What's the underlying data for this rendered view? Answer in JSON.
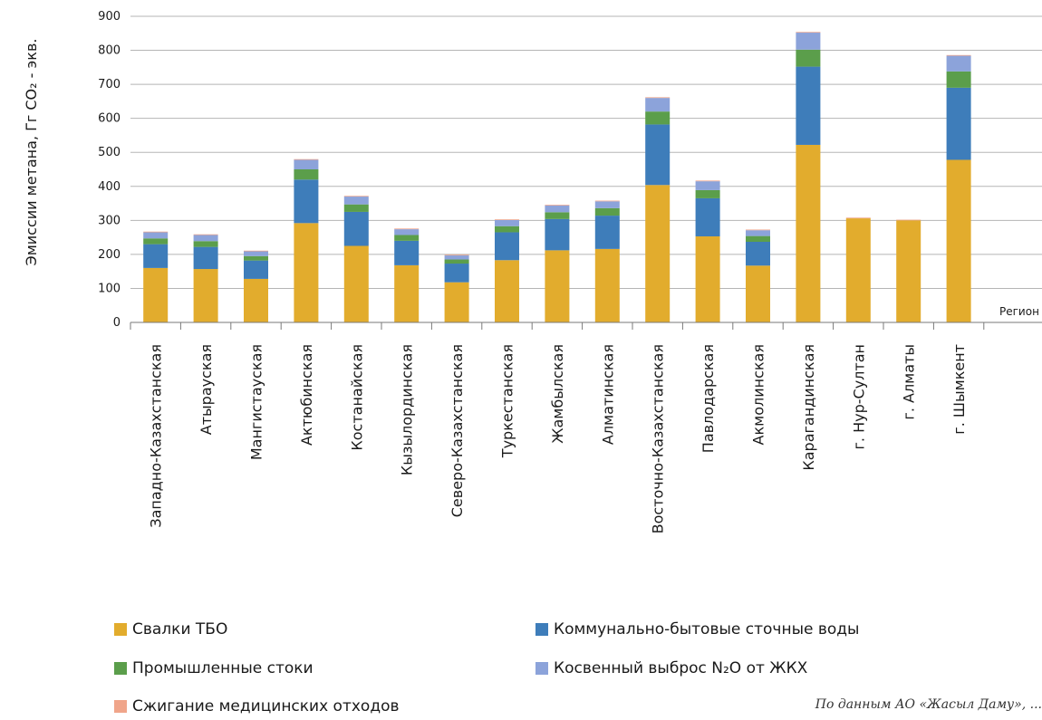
{
  "chart_data": {
    "type": "bar",
    "stacked": true,
    "ylabel": "Эмиссии метана, Гг CO₂ - экв.",
    "xlabel": "Регион",
    "ylim": [
      0,
      900
    ],
    "yticks": [
      0,
      100,
      200,
      300,
      400,
      500,
      600,
      700,
      800,
      900
    ],
    "grid": true,
    "legend_position": "bottom",
    "categories": [
      "Западно-Казахстанская",
      "Атырауская",
      "Мангистауская",
      "Актюбинская",
      "Костанайская",
      "Кызылординская",
      "Северо-Казахстанская",
      "Туркестанская",
      "Жамбылская",
      "Алматинская",
      "Восточно-Казахстанская",
      "Павлодарская",
      "Акмолинская",
      "Карагандинская",
      "г. Нур-Султан",
      "г. Алматы",
      "г. Шымкент"
    ],
    "series": [
      {
        "name": "Свалки ТБО",
        "color": "#E2AC2D",
        "values": [
          160,
          157,
          128,
          292,
          225,
          168,
          118,
          183,
          212,
          216,
          404,
          253,
          167,
          522,
          306,
          300,
          478
        ]
      },
      {
        "name": "Коммунально-бытовые сточные воды",
        "color": "#3E7DBA",
        "values": [
          70,
          65,
          54,
          128,
          100,
          72,
          55,
          82,
          92,
          98,
          178,
          112,
          70,
          230,
          0,
          0,
          212
        ]
      },
      {
        "name": "Промышленные стоки",
        "color": "#5B9E4B",
        "values": [
          17,
          17,
          13,
          30,
          22,
          17,
          12,
          18,
          20,
          22,
          38,
          24,
          17,
          50,
          0,
          0,
          48
        ]
      },
      {
        "name": "Косвенный выброс N₂O от ЖКХ",
        "color": "#8CA3DA",
        "values": [
          18,
          18,
          14,
          28,
          23,
          17,
          12,
          18,
          20,
          20,
          40,
          26,
          17,
          50,
          0,
          0,
          46
        ]
      },
      {
        "name": "Сжигание медицинских отходов",
        "color": "#F0A58A",
        "values": [
          2,
          2,
          2,
          2,
          2,
          2,
          2,
          2,
          2,
          2,
          2,
          2,
          2,
          2,
          2,
          2,
          2
        ]
      }
    ]
  },
  "legend": {
    "s0": "Свалки ТБО",
    "s1": "Коммунально-бытовые сточные воды",
    "s2": "Промышленные стоки",
    "s3": "Косвенный выброс N₂O от ЖКХ",
    "s4": "Сжигание медицинских отходов"
  },
  "source_note": "По данным АО «Жасыл Даму», ..."
}
